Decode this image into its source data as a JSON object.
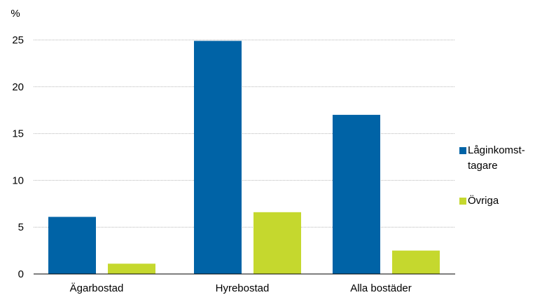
{
  "chart_data": {
    "type": "bar",
    "ylabel": "%",
    "ylim": [
      0,
      25
    ],
    "yticks": [
      0,
      5,
      10,
      15,
      20,
      25
    ],
    "grid": true,
    "legend_position": "right",
    "categories": [
      "Ägarbostad",
      "Hyrebostad",
      "Alla bostäder"
    ],
    "series": [
      {
        "name": "Låginkomst-tagare",
        "legend_lines": [
          "Låginkomst-",
          "tagare"
        ],
        "color": "#0063a6",
        "values": [
          6.1,
          24.9,
          17.0
        ]
      },
      {
        "name": "Övriga",
        "legend_lines": [
          "Övriga"
        ],
        "color": "#c5d82e",
        "values": [
          1.1,
          6.6,
          2.5
        ]
      }
    ]
  }
}
